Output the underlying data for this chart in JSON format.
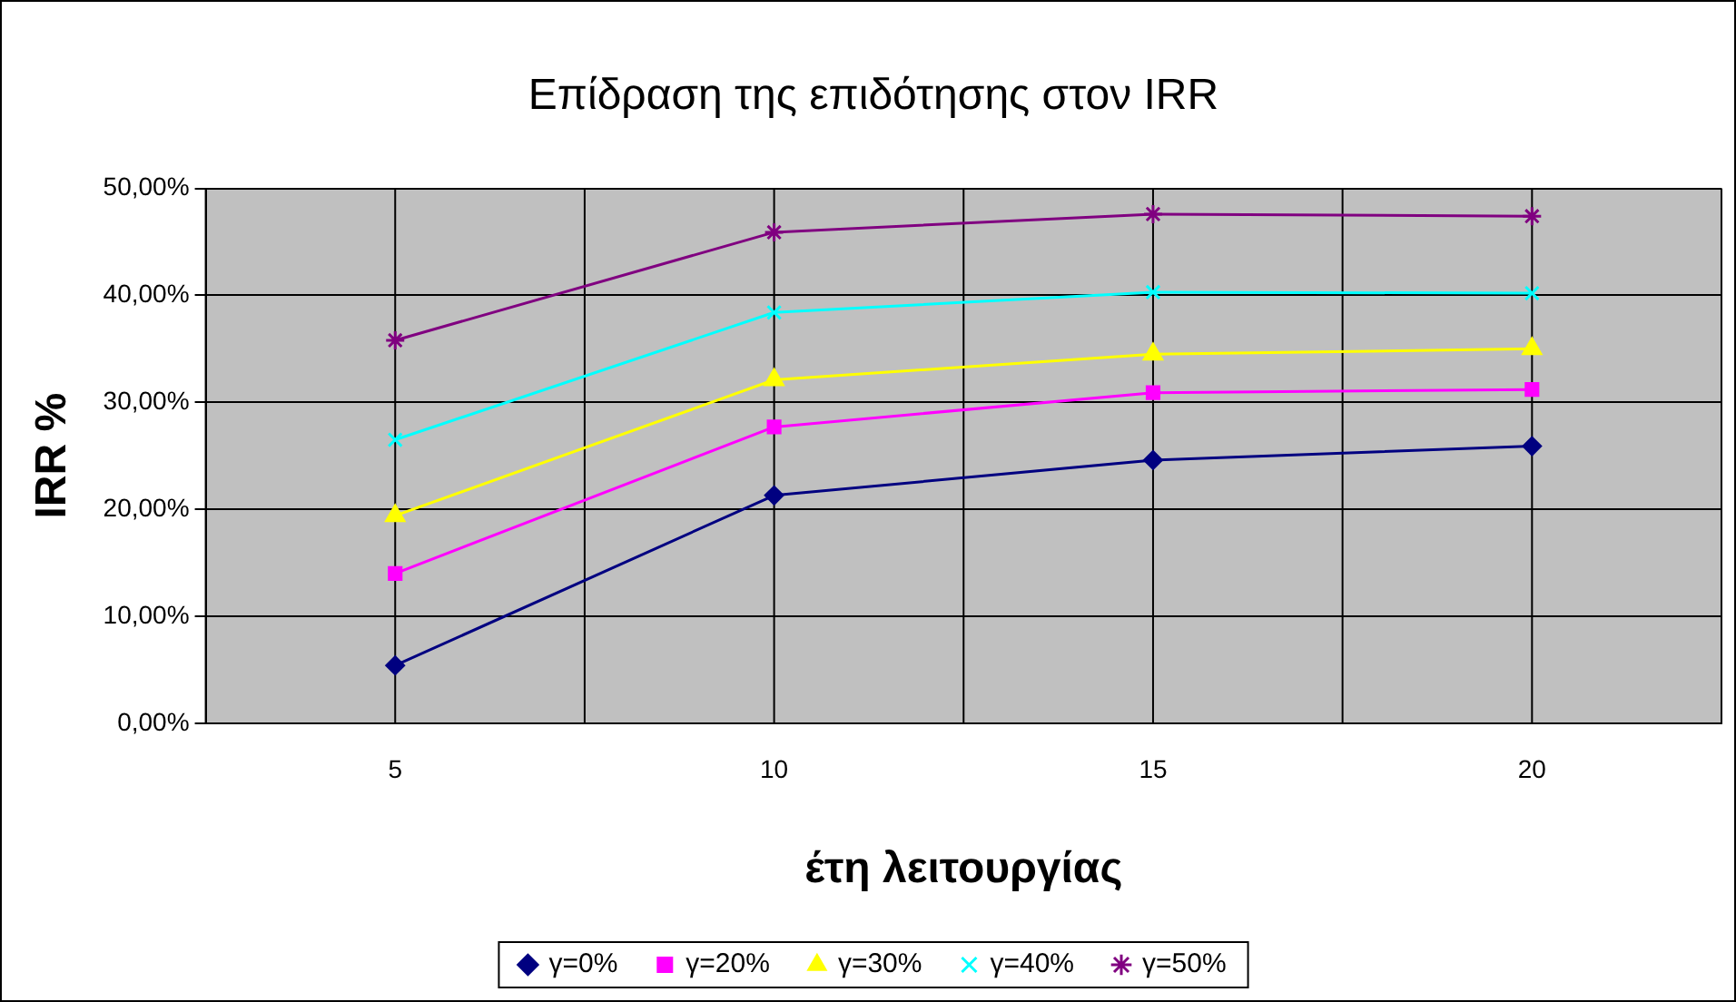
{
  "chart_data": {
    "type": "line",
    "title": "Επίδραση της επιδότησης στον IRR",
    "xlabel": "έτη λειτουργίας",
    "ylabel": "IRR %",
    "categories": [
      "5",
      "10",
      "15",
      "20"
    ],
    "series": [
      {
        "name": "γ=0%",
        "color": "#000080",
        "marker": "diamond",
        "values": [
          5.4,
          21.3,
          24.6,
          25.9
        ]
      },
      {
        "name": "γ=20%",
        "color": "#ff00ff",
        "marker": "square",
        "values": [
          14.0,
          27.7,
          30.9,
          31.2
        ]
      },
      {
        "name": "γ=30%",
        "color": "#ffff00",
        "marker": "triangle",
        "values": [
          19.4,
          32.1,
          34.5,
          35.0
        ]
      },
      {
        "name": "γ=40%",
        "color": "#00ffff",
        "marker": "cross",
        "values": [
          26.5,
          38.4,
          40.3,
          40.2
        ]
      },
      {
        "name": "γ=50%",
        "color": "#800080",
        "marker": "cross",
        "values": [
          35.8,
          45.9,
          47.6,
          47.4
        ]
      }
    ],
    "ylim": [
      0,
      50
    ],
    "yticks": [
      {
        "value": 0,
        "label": "0,00%"
      },
      {
        "value": 10,
        "label": "10,00%"
      },
      {
        "value": 20,
        "label": "20,00%"
      },
      {
        "value": 30,
        "label": "30,00%"
      },
      {
        "value": 40,
        "label": "40,00%"
      },
      {
        "value": 50,
        "label": "50,00%"
      }
    ],
    "grid": true,
    "legend": "bottom"
  }
}
